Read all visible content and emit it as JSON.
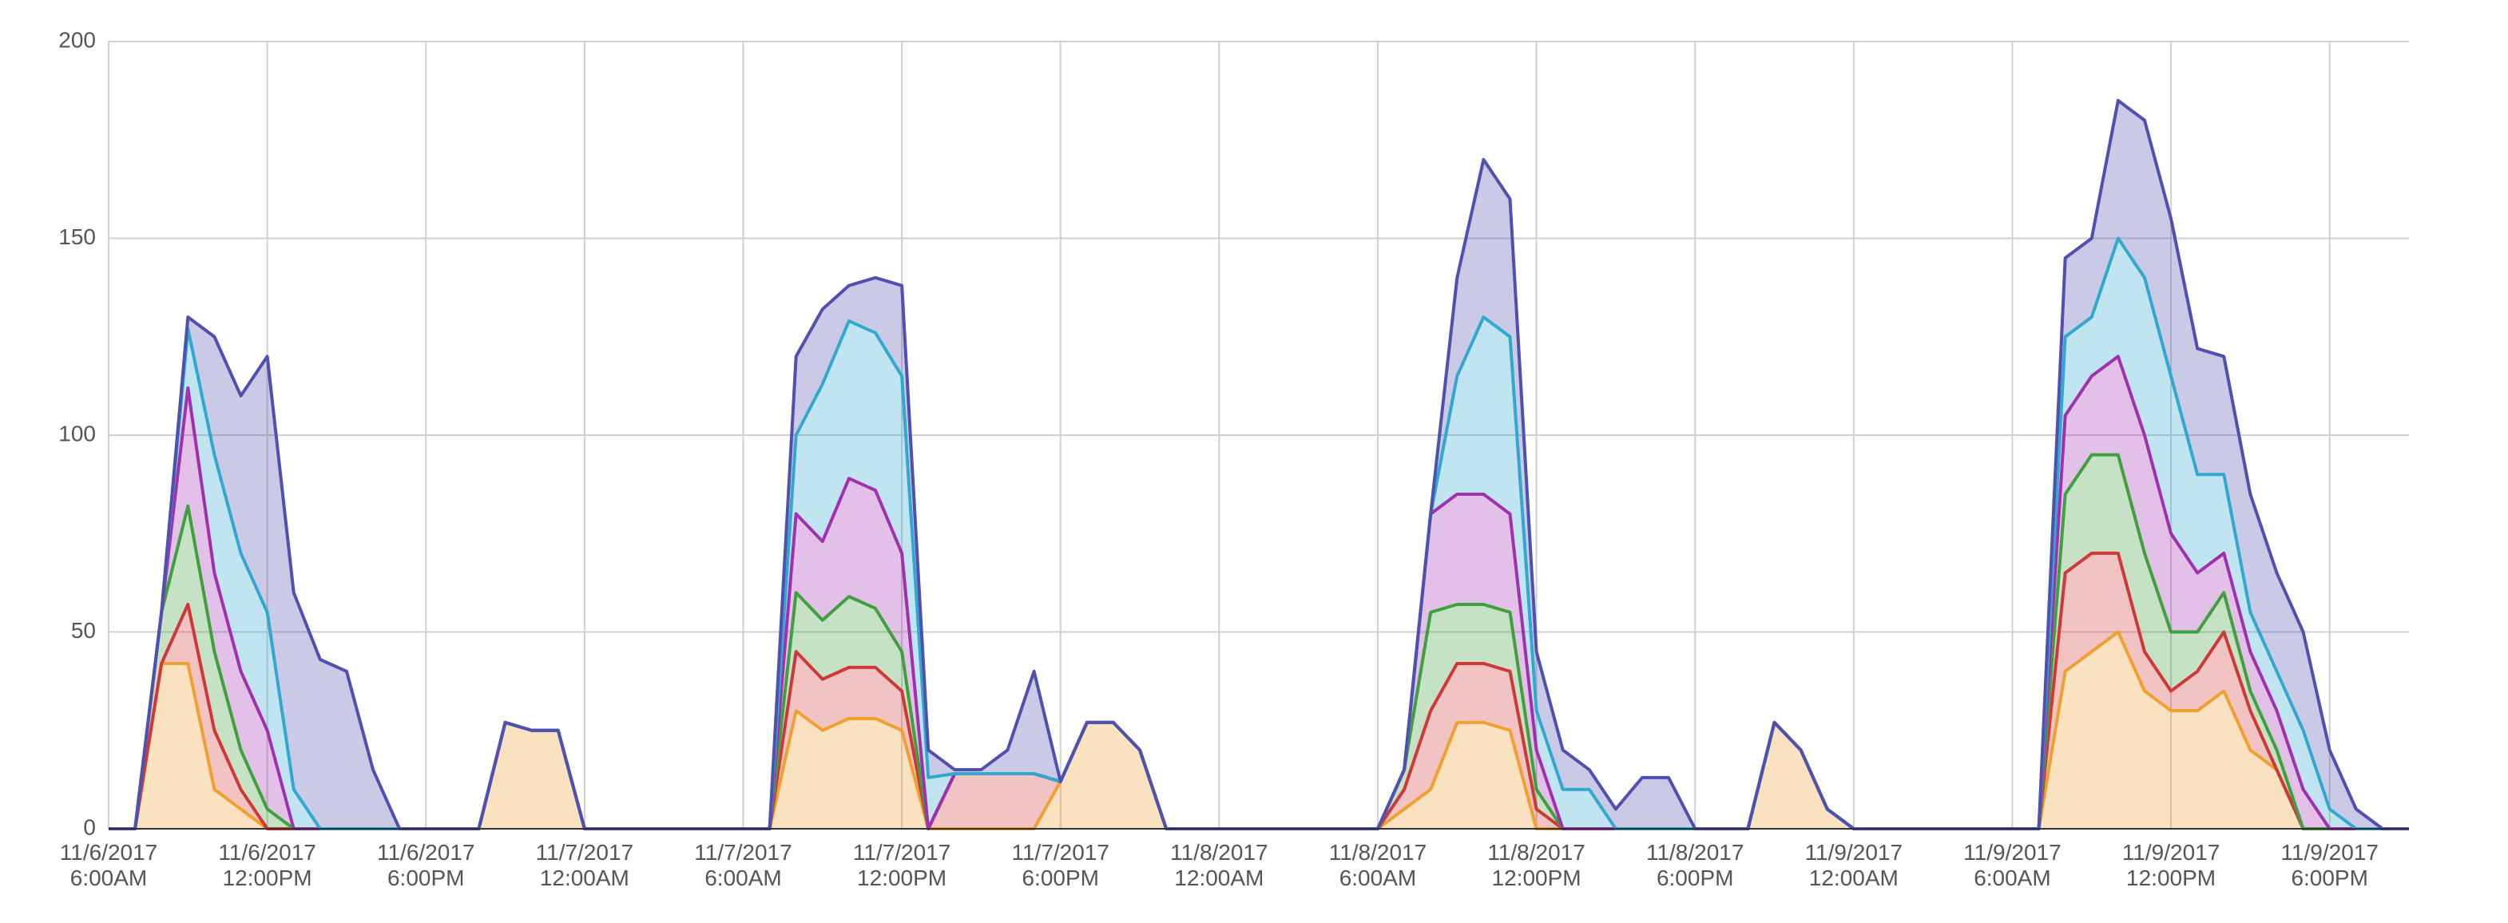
{
  "chart_data": {
    "type": "stacked-area",
    "x": [
      "2017-11-06 06:00",
      "2017-11-06 07:00",
      "2017-11-06 08:00",
      "2017-11-06 09:00",
      "2017-11-06 10:00",
      "2017-11-06 11:00",
      "2017-11-06 12:00",
      "2017-11-06 13:00",
      "2017-11-06 14:00",
      "2017-11-06 15:00",
      "2017-11-06 16:00",
      "2017-11-06 17:00",
      "2017-11-06 18:00",
      "2017-11-06 19:00",
      "2017-11-06 20:00",
      "2017-11-06 21:00",
      "2017-11-06 22:00",
      "2017-11-06 23:00",
      "2017-11-07 00:00",
      "2017-11-07 01:00",
      "2017-11-07 02:00",
      "2017-11-07 03:00",
      "2017-11-07 04:00",
      "2017-11-07 05:00",
      "2017-11-07 06:00",
      "2017-11-07 07:00",
      "2017-11-07 08:00",
      "2017-11-07 09:00",
      "2017-11-07 10:00",
      "2017-11-07 11:00",
      "2017-11-07 12:00",
      "2017-11-07 13:00",
      "2017-11-07 14:00",
      "2017-11-07 15:00",
      "2017-11-07 16:00",
      "2017-11-07 17:00",
      "2017-11-07 18:00",
      "2017-11-07 19:00",
      "2017-11-07 20:00",
      "2017-11-07 21:00",
      "2017-11-07 22:00",
      "2017-11-07 23:00",
      "2017-11-08 00:00",
      "2017-11-08 01:00",
      "2017-11-08 02:00",
      "2017-11-08 03:00",
      "2017-11-08 04:00",
      "2017-11-08 05:00",
      "2017-11-08 06:00",
      "2017-11-08 07:00",
      "2017-11-08 08:00",
      "2017-11-08 09:00",
      "2017-11-08 10:00",
      "2017-11-08 11:00",
      "2017-11-08 12:00",
      "2017-11-08 13:00",
      "2017-11-08 14:00",
      "2017-11-08 15:00",
      "2017-11-08 16:00",
      "2017-11-08 17:00",
      "2017-11-08 18:00",
      "2017-11-08 19:00",
      "2017-11-08 20:00",
      "2017-11-08 21:00",
      "2017-11-08 22:00",
      "2017-11-08 23:00",
      "2017-11-09 00:00",
      "2017-11-09 01:00",
      "2017-11-09 02:00",
      "2017-11-09 03:00",
      "2017-11-09 04:00",
      "2017-11-09 05:00",
      "2017-11-09 06:00",
      "2017-11-09 07:00",
      "2017-11-09 08:00",
      "2017-11-09 09:00",
      "2017-11-09 10:00",
      "2017-11-09 11:00",
      "2017-11-09 12:00",
      "2017-11-09 13:00",
      "2017-11-09 14:00",
      "2017-11-09 15:00",
      "2017-11-09 16:00",
      "2017-11-09 17:00",
      "2017-11-09 18:00",
      "2017-11-09 19:00",
      "2017-11-09 20:00",
      "2017-11-09 21:00"
    ],
    "series": [
      {
        "color": "#f0a030",
        "values": [
          0,
          0,
          42,
          42,
          10,
          5,
          0,
          0,
          0,
          0,
          0,
          0,
          0,
          0,
          0,
          27,
          25,
          25,
          0,
          0,
          0,
          0,
          0,
          0,
          0,
          0,
          30,
          25,
          28,
          28,
          25,
          0,
          0,
          0,
          0,
          0,
          12,
          27,
          27,
          20,
          0,
          0,
          0,
          0,
          0,
          0,
          0,
          0,
          0,
          5,
          10,
          27,
          27,
          25,
          0,
          0,
          0,
          0,
          0,
          0,
          0,
          0,
          0,
          27,
          20,
          5,
          0,
          0,
          0,
          0,
          0,
          0,
          0,
          0,
          40,
          45,
          50,
          35,
          30,
          30,
          35,
          20,
          15,
          0,
          0,
          0,
          0,
          0
        ]
      },
      {
        "color": "#d03838",
        "values": [
          0,
          0,
          0,
          15,
          15,
          5,
          0,
          0,
          0,
          0,
          0,
          0,
          0,
          0,
          0,
          0,
          0,
          0,
          0,
          0,
          0,
          0,
          0,
          0,
          0,
          0,
          15,
          13,
          13,
          13,
          10,
          0,
          14,
          14,
          14,
          14,
          0,
          0,
          0,
          0,
          0,
          0,
          0,
          0,
          0,
          0,
          0,
          0,
          0,
          5,
          20,
          15,
          15,
          15,
          5,
          0,
          0,
          0,
          0,
          0,
          0,
          0,
          0,
          0,
          0,
          0,
          0,
          0,
          0,
          0,
          0,
          0,
          0,
          0,
          25,
          25,
          20,
          10,
          5,
          10,
          15,
          10,
          0,
          0,
          0,
          0,
          0,
          0
        ]
      },
      {
        "color": "#40a040",
        "values": [
          0,
          0,
          13,
          25,
          20,
          10,
          5,
          0,
          0,
          0,
          0,
          0,
          0,
          0,
          0,
          0,
          0,
          0,
          0,
          0,
          0,
          0,
          0,
          0,
          0,
          0,
          15,
          15,
          18,
          15,
          10,
          0,
          0,
          0,
          0,
          0,
          0,
          0,
          0,
          0,
          0,
          0,
          0,
          0,
          0,
          0,
          0,
          0,
          0,
          5,
          25,
          15,
          15,
          15,
          5,
          0,
          0,
          0,
          0,
          0,
          0,
          0,
          0,
          0,
          0,
          0,
          0,
          0,
          0,
          0,
          0,
          0,
          0,
          0,
          20,
          25,
          25,
          25,
          15,
          10,
          10,
          5,
          5,
          0,
          0,
          0,
          0,
          0
        ]
      },
      {
        "color": "#a030b0",
        "values": [
          0,
          0,
          0,
          30,
          20,
          20,
          20,
          0,
          0,
          0,
          0,
          0,
          0,
          0,
          0,
          0,
          0,
          0,
          0,
          0,
          0,
          0,
          0,
          0,
          0,
          0,
          20,
          20,
          30,
          30,
          25,
          0,
          0,
          0,
          0,
          0,
          0,
          0,
          0,
          0,
          0,
          0,
          0,
          0,
          0,
          0,
          0,
          0,
          0,
          0,
          25,
          28,
          28,
          25,
          10,
          0,
          0,
          0,
          0,
          0,
          0,
          0,
          0,
          0,
          0,
          0,
          0,
          0,
          0,
          0,
          0,
          0,
          0,
          0,
          20,
          20,
          25,
          30,
          25,
          15,
          10,
          10,
          10,
          10,
          0,
          0,
          0,
          0
        ]
      },
      {
        "color": "#30a8d0",
        "values": [
          0,
          0,
          0,
          15,
          30,
          30,
          30,
          10,
          0,
          0,
          0,
          0,
          0,
          0,
          0,
          0,
          0,
          0,
          0,
          0,
          0,
          0,
          0,
          0,
          0,
          0,
          20,
          40,
          40,
          40,
          45,
          13,
          0,
          0,
          0,
          0,
          0,
          0,
          0,
          0,
          0,
          0,
          0,
          0,
          0,
          0,
          0,
          0,
          0,
          0,
          0,
          30,
          45,
          45,
          10,
          10,
          10,
          0,
          0,
          0,
          0,
          0,
          0,
          0,
          0,
          0,
          0,
          0,
          0,
          0,
          0,
          0,
          0,
          0,
          20,
          15,
          30,
          40,
          40,
          25,
          20,
          10,
          10,
          15,
          5,
          0,
          0,
          0
        ]
      },
      {
        "color": "#5050b0",
        "values": [
          0,
          0,
          0,
          3,
          30,
          40,
          65,
          50,
          43,
          40,
          15,
          0,
          0,
          0,
          0,
          0,
          0,
          0,
          0,
          0,
          0,
          0,
          0,
          0,
          0,
          0,
          20,
          19,
          9,
          14,
          23,
          7,
          1,
          1,
          6,
          26,
          0,
          0,
          0,
          0,
          0,
          0,
          0,
          0,
          0,
          0,
          0,
          0,
          0,
          0,
          0,
          25,
          40,
          35,
          15,
          10,
          5,
          5,
          13,
          13,
          0,
          0,
          0,
          0,
          0,
          0,
          0,
          0,
          0,
          0,
          0,
          0,
          0,
          0,
          20,
          20,
          35,
          40,
          40,
          32,
          30,
          30,
          25,
          25,
          15,
          5,
          0,
          0
        ]
      }
    ],
    "xlim": [
      "2017-11-06 06:00",
      "2017-11-09 21:00"
    ],
    "xticks": [
      {
        "value": "2017-11-06 06:00",
        "label": "11/6/2017\n6:00AM"
      },
      {
        "value": "2017-11-06 12:00",
        "label": "11/6/2017\n12:00PM"
      },
      {
        "value": "2017-11-06 18:00",
        "label": "11/6/2017\n6:00PM"
      },
      {
        "value": "2017-11-07 00:00",
        "label": "11/7/2017\n12:00AM"
      },
      {
        "value": "2017-11-07 06:00",
        "label": "11/7/2017\n6:00AM"
      },
      {
        "value": "2017-11-07 12:00",
        "label": "11/7/2017\n12:00PM"
      },
      {
        "value": "2017-11-07 18:00",
        "label": "11/7/2017\n6:00PM"
      },
      {
        "value": "2017-11-08 00:00",
        "label": "11/8/2017\n12:00AM"
      },
      {
        "value": "2017-11-08 06:00",
        "label": "11/8/2017\n6:00AM"
      },
      {
        "value": "2017-11-08 12:00",
        "label": "11/8/2017\n12:00PM"
      },
      {
        "value": "2017-11-08 18:00",
        "label": "11/8/2017\n6:00PM"
      },
      {
        "value": "2017-11-09 00:00",
        "label": "11/9/2017\n12:00AM"
      },
      {
        "value": "2017-11-09 06:00",
        "label": "11/9/2017\n6:00AM"
      },
      {
        "value": "2017-11-09 12:00",
        "label": "11/9/2017\n12:00PM"
      },
      {
        "value": "2017-11-09 18:00",
        "label": "11/9/2017\n6:00PM"
      }
    ],
    "ylim": [
      0,
      200
    ],
    "yticks": [
      0,
      50,
      100,
      150,
      200
    ],
    "grid": true
  }
}
